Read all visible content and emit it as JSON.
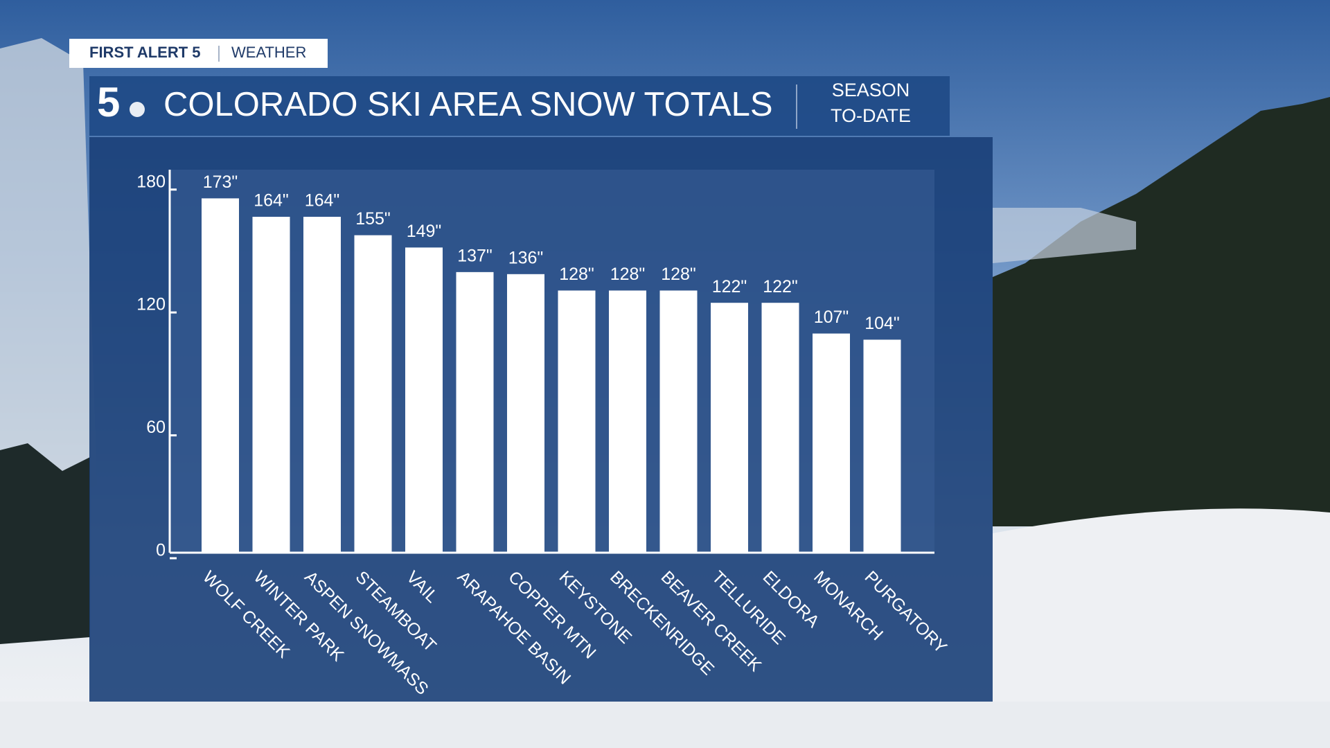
{
  "chart_data": {
    "type": "bar",
    "brand": "FIRST ALERT 5",
    "brand_section": "WEATHER",
    "logo": "5",
    "title": "COLORADO SKI AREA SNOW TOTALS",
    "subtitle": [
      "SEASON",
      "TO-DATE"
    ],
    "categories": [
      "WOLF CREEK",
      "WINTER PARK",
      "ASPEN SNOWMASS",
      "STEAMBOAT",
      "VAIL",
      "ARAPAHOE BASIN",
      "COPPER MTN",
      "KEYSTONE",
      "BRECKENRIDGE",
      "BEAVER CREEK",
      "TELLURIDE",
      "ELDORA",
      "MONARCH",
      "PURGATORY"
    ],
    "values": [
      173,
      164,
      164,
      155,
      149,
      137,
      136,
      128,
      128,
      128,
      122,
      122,
      107,
      104
    ],
    "value_labels": [
      "173\"",
      "164\"",
      "164\"",
      "155\"",
      "149\"",
      "137\"",
      "136\"",
      "128\"",
      "128\"",
      "128\"",
      "122\"",
      "122\"",
      "107\"",
      "104\""
    ],
    "color": "#ffffff",
    "ylim": [
      0,
      187
    ],
    "yticks": [
      0,
      60,
      120,
      180
    ]
  }
}
